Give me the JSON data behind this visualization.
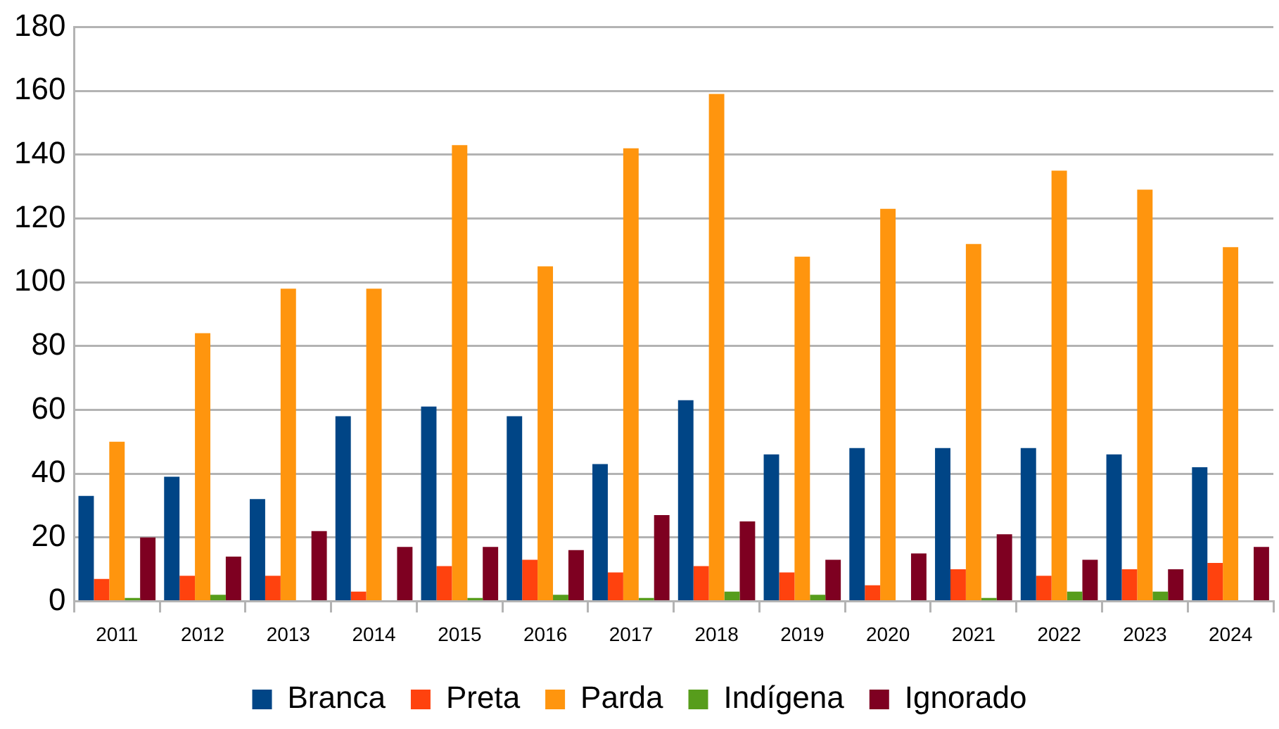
{
  "chart_data": {
    "type": "bar",
    "categories": [
      "2011",
      "2012",
      "2013",
      "2014",
      "2015",
      "2016",
      "2017",
      "2018",
      "2019",
      "2020",
      "2021",
      "2022",
      "2023",
      "2024"
    ],
    "series": [
      {
        "name": "Branca",
        "color": "#004586",
        "values": [
          33,
          39,
          32,
          58,
          61,
          58,
          43,
          63,
          46,
          48,
          48,
          48,
          46,
          42
        ]
      },
      {
        "name": "Preta",
        "color": "#ff420e",
        "values": [
          7,
          8,
          8,
          3,
          11,
          13,
          9,
          11,
          9,
          5,
          10,
          8,
          10,
          12
        ]
      },
      {
        "name": "Parda",
        "color": "#ff950e",
        "values": [
          50,
          84,
          98,
          98,
          143,
          105,
          142,
          159,
          108,
          123,
          112,
          135,
          129,
          111
        ]
      },
      {
        "name": "Indígena",
        "color": "#579d1c",
        "values": [
          1,
          2,
          0,
          0,
          1,
          2,
          1,
          3,
          2,
          0,
          1,
          3,
          3,
          0
        ]
      },
      {
        "name": "Ignorado",
        "color": "#7e0021",
        "values": [
          20,
          14,
          22,
          17,
          17,
          16,
          27,
          25,
          13,
          15,
          21,
          13,
          10,
          17
        ]
      }
    ],
    "ylim": [
      0,
      180
    ],
    "yticks": [
      0,
      20,
      40,
      60,
      80,
      100,
      120,
      140,
      160,
      180
    ],
    "grid": "y",
    "legend": "bottom"
  }
}
